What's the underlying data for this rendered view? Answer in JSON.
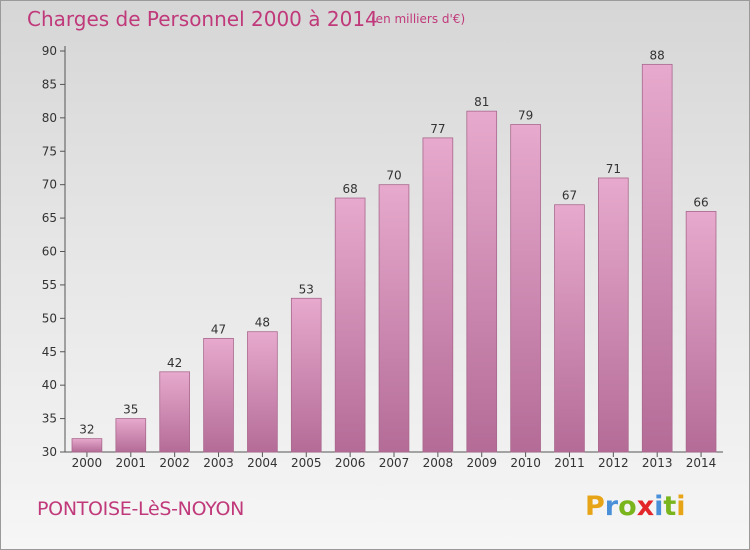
{
  "title": "Charges de Personnel 2000 à 2014",
  "subtitle": "(en milliers d'€)",
  "footer_label": "PONTOISE-LèS-NOYON",
  "logo": {
    "text": "Proxiti",
    "letters": [
      {
        "char": "P",
        "color": "#e8a417"
      },
      {
        "char": "r",
        "color": "#4a90d9"
      },
      {
        "char": "o",
        "color": "#7ab51d"
      },
      {
        "char": "x",
        "color": "#e3262a"
      },
      {
        "char": "i",
        "color": "#4a90d9"
      },
      {
        "char": "t",
        "color": "#7ab51d"
      },
      {
        "char": "i",
        "color": "#e8a417"
      }
    ]
  },
  "colors": {
    "bar_top": "#e7a9cd",
    "bar_bottom": "#b46c97",
    "bar_stroke": "#a9688d",
    "title": "#c0397a"
  },
  "chart_data": {
    "type": "bar",
    "title": "Charges de Personnel 2000 à 2014",
    "subtitle": "(en milliers d'€)",
    "xlabel": "",
    "ylabel": "",
    "categories": [
      "2000",
      "2001",
      "2002",
      "2003",
      "2004",
      "2005",
      "2006",
      "2007",
      "2008",
      "2009",
      "2010",
      "2011",
      "2012",
      "2013",
      "2014"
    ],
    "values": [
      32,
      35,
      42,
      47,
      48,
      53,
      68,
      70,
      77,
      81,
      79,
      67,
      71,
      88,
      66
    ],
    "ylim": [
      30,
      90
    ],
    "yticks": [
      30,
      35,
      40,
      45,
      50,
      55,
      60,
      65,
      70,
      75,
      80,
      85,
      90
    ],
    "grid": false,
    "legend": "none"
  }
}
